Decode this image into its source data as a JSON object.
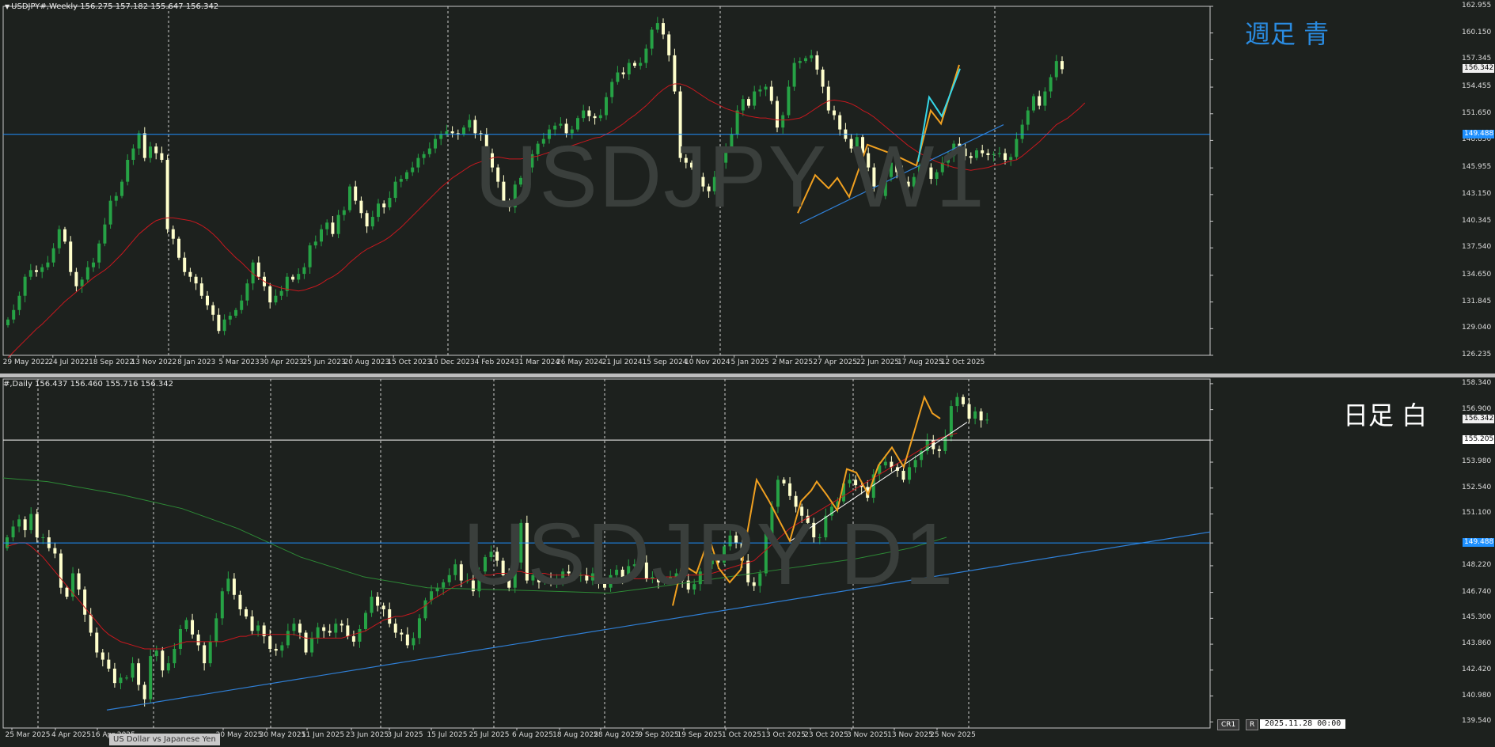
{
  "colors": {
    "bg": "#1d211e",
    "bull": "#26a245",
    "bear": "#ffffcc",
    "ma_red": "#c8181e",
    "ma_green": "#2d8a36",
    "hline": "#1e90ff",
    "trend_blue": "#2f7fd6",
    "zig_orange": "#f0a020",
    "zig_cyan": "#35d7e8",
    "white": "#ffffff"
  },
  "weekly": {
    "header": "USDJPY#,Weekly  156.275 157.182 155.647 156.342",
    "watermark": "USDJPY W1",
    "note": "週足  青",
    "price_labels": [
      "162.955",
      "160.150",
      "157.345",
      "154.455",
      "151.650",
      "148.850",
      "145.955",
      "143.150",
      "140.345",
      "137.540",
      "134.650",
      "131.845",
      "129.040",
      "126.235"
    ],
    "current_price": "156.342",
    "hline_price": "149.488",
    "date_labels": [
      "29 May 2022",
      "24 Jul 2022",
      "18 Sep 2022",
      "13 Nov 2022",
      "8 Jan 2023",
      "5 Mar 2023",
      "30 Apr 2023",
      "25 Jun 2023",
      "20 Aug 2023",
      "15 Oct 2023",
      "10 Dec 2023",
      "4 Feb 2024",
      "31 Mar 2024",
      "26 May 2024",
      "21 Jul 2024",
      "15 Sep 2024",
      "10 Nov 2024",
      "5 Jan 2025",
      "2 Mar 2025",
      "27 Apr 2025",
      "22 Jun 2025",
      "17 Aug 2025",
      "12 Oct 2025"
    ],
    "closes": [
      130.0,
      131.0,
      132.5,
      134.5,
      135.2,
      135.0,
      135.5,
      136.0,
      137.5,
      139.5,
      138.2,
      135.0,
      133.5,
      134.2,
      135.5,
      136.0,
      138.0,
      140.0,
      142.5,
      143.0,
      144.5,
      146.8,
      148.0,
      149.6,
      147.0,
      148.2,
      147.5,
      146.8,
      139.5,
      138.5,
      136.5,
      135.0,
      134.5,
      133.8,
      132.5,
      131.5,
      130.5,
      128.8,
      130.0,
      130.4,
      131.0,
      132.0,
      133.8,
      136.0,
      134.5,
      133.5,
      131.8,
      132.5,
      133.0,
      134.5,
      134.2,
      134.8,
      135.5,
      137.8,
      138.2,
      139.5,
      140.2,
      139.0,
      141.0,
      141.5,
      144.0,
      142.5,
      141.2,
      139.8,
      140.8,
      142.2,
      141.8,
      142.8,
      144.5,
      144.8,
      145.5,
      146.0,
      147.0,
      147.4,
      148.0,
      149.0,
      149.5,
      149.8,
      149.6,
      149.5,
      150.2,
      151.0,
      149.6,
      149.5,
      147.5,
      146.0,
      144.5,
      142.2,
      141.8,
      144.2,
      144.9,
      146.0,
      147.4,
      148.5,
      149.0,
      150.0,
      150.4,
      150.6,
      149.6,
      150.0,
      151.2,
      152.0,
      151.4,
      151.2,
      151.5,
      153.4,
      155.0,
      156.0,
      155.8,
      157.0,
      156.7,
      157.0,
      158.5,
      160.5,
      161.2,
      160.0,
      157.8,
      154.0,
      147.0,
      146.5,
      146.0,
      145.0,
      144.0,
      143.5,
      145.0,
      146.5,
      148.2,
      149.5,
      152.0,
      153.2,
      152.5,
      154.0,
      154.2,
      154.5,
      153.0,
      150.2,
      151.5,
      154.5,
      157.0,
      157.2,
      157.5,
      157.8,
      156.3,
      154.5,
      152.0,
      151.5,
      150.0,
      149.0,
      148.0,
      149.2,
      147.5,
      146.0,
      144.0,
      143.0,
      145.0,
      146.5,
      145.5,
      144.5,
      144.0,
      145.0,
      146.2,
      146.0,
      144.8,
      145.5,
      146.5,
      147.2,
      148.5,
      148.0,
      147.2,
      147.0,
      147.8,
      147.5,
      147.3,
      147.4,
      147.5,
      146.8,
      147.1,
      149.0,
      150.5,
      152.0,
      153.5,
      152.5,
      154.0,
      155.5,
      157.2,
      156.342
    ],
    "sma20": [
      126.0,
      126.6,
      127.2,
      127.8,
      128.4,
      129.0,
      129.5,
      130.1,
      130.7,
      131.3,
      131.9,
      132.4,
      132.9,
      133.4,
      133.9,
      134.4,
      134.8,
      135.2,
      135.7,
      136.3,
      136.9,
      137.6,
      138.3,
      139.0,
      139.5,
      140.0,
      140.4,
      140.6,
      140.7,
      140.7,
      140.6,
      140.5,
      140.4,
      140.2,
      139.9,
      139.5,
      139.0,
      138.4,
      137.7,
      137.1,
      136.5,
      136.0,
      135.4,
      134.8,
      134.4,
      134.0,
      133.7,
      133.5,
      133.3,
      133.2,
      133.1,
      133.0,
      133.1,
      133.3,
      133.5,
      133.8,
      134.2,
      134.5,
      134.9,
      135.4,
      136.0,
      136.5,
      137.0,
      137.4,
      137.7,
      138.0,
      138.3,
      138.7,
      139.2,
      139.7,
      140.3,
      140.9,
      141.5,
      142.1,
      142.7,
      143.3,
      143.9,
      144.4,
      144.9,
      145.3,
      145.7,
      146.1,
      146.4,
      146.6,
      146.8,
      147.0,
      147.1,
      147.0,
      146.9,
      146.9,
      146.9,
      147.0,
      147.1,
      147.2,
      147.4,
      147.6,
      147.8,
      148.0,
      148.1,
      148.3,
      148.5,
      148.7,
      148.9,
      149.1,
      149.2,
      149.5,
      149.8,
      150.2,
      150.6,
      151.1,
      151.5,
      152.0,
      152.5,
      153.1,
      153.7,
      154.2,
      154.6,
      154.8,
      154.8,
      154.6,
      154.3,
      153.9,
      153.5,
      153.1,
      152.8,
      152.5,
      152.2,
      152.0,
      151.8,
      151.6,
      151.4,
      151.3,
      151.2,
      151.2,
      151.1,
      151.0,
      151.0,
      151.0,
      151.1,
      151.2,
      151.5,
      151.9,
      152.3,
      152.7,
      153.0,
      153.1,
      153.0,
      152.9,
      152.7,
      152.4,
      152.0,
      151.7,
      151.3,
      150.8,
      150.3,
      149.8,
      149.3,
      148.8,
      148.3,
      147.9,
      147.5,
      147.2,
      146.9,
      146.6,
      146.4,
      146.2,
      146.0,
      145.9,
      145.8,
      145.7,
      145.8,
      145.9,
      146.0,
      146.2,
      146.3,
      146.5,
      146.7,
      146.8,
      147.2,
      147.7,
      148.2,
      148.7,
      149.3,
      149.9,
      150.5
    ],
    "ma_end_extra": [
      [
        1,
        151.2
      ],
      [
        2,
        151.7
      ],
      [
        3,
        152.2
      ],
      [
        4,
        152.8
      ]
    ]
  },
  "daily": {
    "header": "#,Daily  156.437 156.460 155.716 156.342",
    "watermark": "USDJPY D1",
    "note": "日足  白",
    "price_labels": [
      "158.340",
      "156.900",
      "155.205",
      "153.980",
      "152.540",
      "151.100",
      "149.488",
      "148.220",
      "146.740",
      "145.300",
      "143.860",
      "142.420",
      "140.980",
      "139.540"
    ],
    "current_price": "156.342",
    "hline_price": "149.488",
    "white_hline": "155.205",
    "date_labels": [
      "25 Mar 2025",
      "4 Apr 2025",
      "16 Apr 2025",
      "20 May 2025",
      "30 May 2025",
      "11 Jun 2025",
      "23 Jun 2025",
      "3 Jul 2025",
      "15 Jul 2025",
      "25 Jul 2025",
      "6 Aug 2025",
      "18 Aug 2025",
      "28 Aug 2025",
      "9 Sep 2025",
      "19 Sep 2025",
      "1 Oct 2025",
      "13 Oct 2025",
      "23 Oct 2025",
      "3 Nov 2025",
      "13 Nov 2025",
      "25 Nov 2025"
    ],
    "closes": [
      149.8,
      150.4,
      150.8,
      150.2,
      151.1,
      149.8,
      149.8,
      149.2,
      148.9,
      147.0,
      146.5,
      147.8,
      146.9,
      145.5,
      144.5,
      143.4,
      143.0,
      142.5,
      141.7,
      142.0,
      142.0,
      142.8,
      141.6,
      140.8,
      143.2,
      143.5,
      142.4,
      142.8,
      143.6,
      144.7,
      145.2,
      144.4,
      143.8,
      142.8,
      144.0,
      145.3,
      146.8,
      147.5,
      146.6,
      145.8,
      145.4,
      144.6,
      144.9,
      144.3,
      143.6,
      143.5,
      143.8,
      144.6,
      145.0,
      144.5,
      143.4,
      144.2,
      144.8,
      144.6,
      144.5,
      145.0,
      144.9,
      144.3,
      144.0,
      144.7,
      145.6,
      146.5,
      146.0,
      145.8,
      145.0,
      144.5,
      144.4,
      143.8,
      144.2,
      145.3,
      146.3,
      146.8,
      147.0,
      147.3,
      147.7,
      148.3,
      147.4,
      147.4,
      146.8,
      147.9,
      148.7,
      149.0,
      148.5,
      147.7,
      147.0,
      148.4,
      150.6,
      147.4,
      147.7,
      147.3,
      147.5,
      147.3,
      147.5,
      147.9,
      147.8,
      147.7,
      147.7,
      147.4,
      147.8,
      147.3,
      147.0,
      147.7,
      148.0,
      147.6,
      148.2,
      148.3,
      148.4,
      147.5,
      147.6,
      147.3,
      147.5,
      147.6,
      147.8,
      147.4,
      146.9,
      147.2,
      147.9,
      148.3,
      148.6,
      148.4,
      149.3,
      149.9,
      149.5,
      148.5,
      147.3,
      147.1,
      147.8,
      150.0,
      151.5,
      153.0,
      152.8,
      152.1,
      151.5,
      151.0,
      150.6,
      149.8,
      149.8,
      151.0,
      151.5,
      151.8,
      152.8,
      153.0,
      152.7,
      152.6,
      152.0,
      153.3,
      153.8,
      154.0,
      153.7,
      153.5,
      153.0,
      153.7,
      154.1,
      154.6,
      155.2,
      154.7,
      154.6,
      155.4,
      157.1,
      157.6,
      157.2,
      156.4,
      156.8,
      156.3,
      156.342
    ],
    "sma20": [
      149.3,
      149.4,
      149.5,
      149.5,
      149.3,
      149.0,
      148.7,
      148.3,
      147.9,
      147.5,
      147.1,
      146.7,
      146.3,
      145.9,
      145.5,
      145.1,
      144.7,
      144.4,
      144.2,
      144.0,
      143.9,
      143.8,
      143.7,
      143.6,
      143.6,
      143.6,
      143.6,
      143.7,
      143.8,
      143.9,
      144.0,
      144.0,
      144.0,
      144.0,
      144.0,
      144.0,
      144.0,
      144.1,
      144.2,
      144.3,
      144.3,
      144.4,
      144.4,
      144.4,
      144.4,
      144.4,
      144.4,
      144.4,
      144.4,
      144.3,
      144.2,
      144.2,
      144.2,
      144.2,
      144.2,
      144.2,
      144.2,
      144.3,
      144.4,
      144.5,
      144.6,
      144.8,
      145.0,
      145.2,
      145.3,
      145.4,
      145.4,
      145.5,
      145.6,
      145.8,
      146.0,
      146.3,
      146.5,
      146.7,
      146.9,
      147.1,
      147.2,
      147.4,
      147.5,
      147.6,
      147.7,
      147.7,
      147.8,
      147.8,
      147.8,
      147.9,
      147.9,
      147.8,
      147.8,
      147.8,
      147.8,
      147.7,
      147.7,
      147.7,
      147.7,
      147.7,
      147.7,
      147.7,
      147.6,
      147.6,
      147.5,
      147.5,
      147.5,
      147.5,
      147.5,
      147.5,
      147.5,
      147.5,
      147.5,
      147.5,
      147.6,
      147.6,
      147.6,
      147.6,
      147.7,
      147.7,
      147.7,
      147.8,
      147.8,
      147.9,
      148.0,
      148.1,
      148.2,
      148.3,
      148.4,
      148.5,
      148.8,
      149.1,
      149.4,
      149.7,
      150.0,
      150.3,
      150.5,
      150.7,
      150.9,
      151.1,
      151.3,
      151.5,
      151.7,
      151.9,
      152.1,
      152.3,
      152.5,
      152.7,
      152.9,
      153.1,
      153.3,
      153.5,
      153.7,
      153.9,
      154.1,
      154.3,
      154.5,
      154.7,
      154.9,
      155.1,
      155.3,
      155.4,
      155.5,
      155.6
    ]
  },
  "footer": {
    "tooltip": "US Dollar vs Japanese Yen",
    "cr1": "CR1",
    "r": "R",
    "datetime": "2025.11.28 00:00"
  }
}
